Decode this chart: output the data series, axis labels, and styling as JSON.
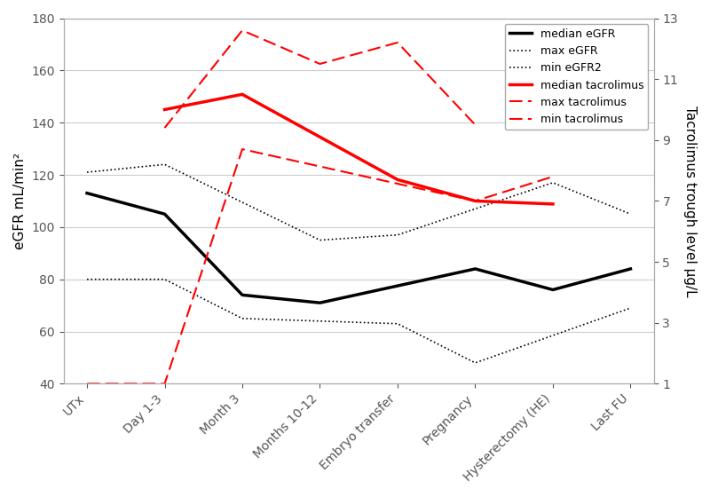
{
  "x_labels": [
    "UTx",
    "Day 1-3",
    "Month 3",
    "Months 10-12",
    "Embryo transfer",
    "Pregnancy",
    "Hysterectomy (HE)",
    "Last FU"
  ],
  "median_eGFR": [
    113,
    105,
    74,
    71,
    null,
    84,
    76,
    84
  ],
  "max_eGFR": [
    121,
    124,
    null,
    95,
    97,
    null,
    117,
    105
  ],
  "min_eGFR": [
    80,
    80,
    65,
    null,
    63,
    48,
    null,
    69
  ],
  "median_tac": [
    null,
    10.0,
    10.5,
    null,
    7.7,
    7.0,
    6.9,
    null
  ],
  "max_tac": [
    null,
    9.4,
    12.6,
    11.5,
    12.2,
    9.5,
    null,
    null
  ],
  "min_tac": [
    1.0,
    1.0,
    8.7,
    null,
    null,
    7.0,
    7.8,
    null
  ],
  "ylim_left": [
    40,
    180
  ],
  "ylim_right": [
    1,
    13
  ],
  "left_ticks": [
    40,
    60,
    80,
    100,
    120,
    140,
    160,
    180
  ],
  "right_ticks": [
    1,
    3,
    5,
    7,
    9,
    11,
    13
  ],
  "ylabel_left": "eGFR mL/min²",
  "ylabel_right": "Tacrolimus trough level μg/L",
  "color_black": "#000000",
  "color_red": "#ff0000"
}
